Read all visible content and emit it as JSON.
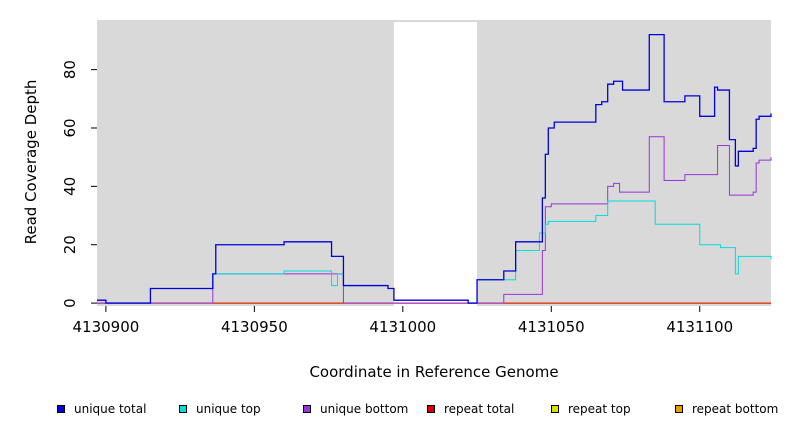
{
  "chart_data": {
    "type": "line",
    "title": "",
    "xlabel": "Coordinate in Reference Genome",
    "ylabel": "Read Coverage Depth",
    "xlim": [
      4130897,
      4131124
    ],
    "ylim": [
      -1,
      97
    ],
    "x_ticks": [
      4130900,
      4130950,
      4131000,
      4131050,
      4131100
    ],
    "x_tick_labels": [
      "4130900",
      "4130950",
      "4131000",
      "4131050",
      "4131100"
    ],
    "y_ticks": [
      0,
      20,
      40,
      60,
      80
    ],
    "y_tick_labels": [
      "0",
      "20",
      "40",
      "60",
      "80"
    ],
    "background_color": "#d9d9d9",
    "gap_region": [
      4130997,
      4131025
    ],
    "step_plot": true,
    "legend_position": "bottom",
    "series": [
      {
        "name": "unique total",
        "color": "#0000dd",
        "x": [
          4130897,
          4130900,
          4130915,
          4130936,
          4130937,
          4130960,
          4130976,
          4130980,
          4130995,
          4130997,
          4131022,
          4131025,
          4131034,
          4131038,
          4131047,
          4131048,
          4131049,
          4131051,
          4131065,
          4131067,
          4131069,
          4131071,
          4131074,
          4131083,
          4131088,
          4131095,
          4131100,
          4131105,
          4131106,
          4131110,
          4131112,
          4131113,
          4131118,
          4131119,
          4131120,
          4131124
        ],
        "y": [
          1,
          0,
          5,
          10,
          20,
          21,
          16,
          6,
          5,
          1,
          0,
          8,
          11,
          21,
          36,
          51,
          60,
          62,
          68,
          69,
          75,
          76,
          73,
          92,
          69,
          71,
          64,
          74,
          73,
          56,
          47,
          52,
          53,
          63,
          64,
          65
        ]
      },
      {
        "name": "unique top",
        "color": "#00dddd",
        "x": [
          4130897,
          4130900,
          4130915,
          4130936,
          4130960,
          4130976,
          4130978,
          4130980,
          4130995,
          4130997,
          4131022,
          4131025,
          4131038,
          4131046,
          4131048,
          4131049,
          4131051,
          4131065,
          4131069,
          4131085,
          4131095,
          4131100,
          4131107,
          4131112,
          4131113,
          4131124
        ],
        "y": [
          1,
          0,
          5,
          10,
          11,
          6,
          10,
          6,
          5,
          1,
          0,
          8,
          18,
          24,
          27,
          28,
          28,
          30,
          35,
          27,
          27,
          20,
          19,
          10,
          16,
          15
        ]
      },
      {
        "name": "unique bottom",
        "color": "#9933dd",
        "x": [
          4130897,
          4130900,
          4130936,
          4130980,
          4131034,
          4131047,
          4131048,
          4131050,
          4131069,
          4131071,
          4131073,
          4131083,
          4131088,
          4131095,
          4131100,
          4131106,
          4131110,
          4131118,
          4131119,
          4131120,
          4131124
        ],
        "y": [
          0,
          0,
          10,
          0,
          3,
          18,
          33,
          34,
          40,
          41,
          38,
          57,
          42,
          44,
          44,
          54,
          37,
          38,
          48,
          49,
          50
        ]
      },
      {
        "name": "repeat total",
        "color": "#dd0000",
        "x": [
          4130897,
          4131124
        ],
        "y": [
          0,
          0
        ]
      },
      {
        "name": "repeat top",
        "color": "#dddd00",
        "x": [
          4130897,
          4131124
        ],
        "y": [
          0,
          0
        ]
      },
      {
        "name": "repeat bottom",
        "color": "#ee9900",
        "x": [
          4130897,
          4131124
        ],
        "y": [
          0,
          0
        ]
      }
    ]
  }
}
